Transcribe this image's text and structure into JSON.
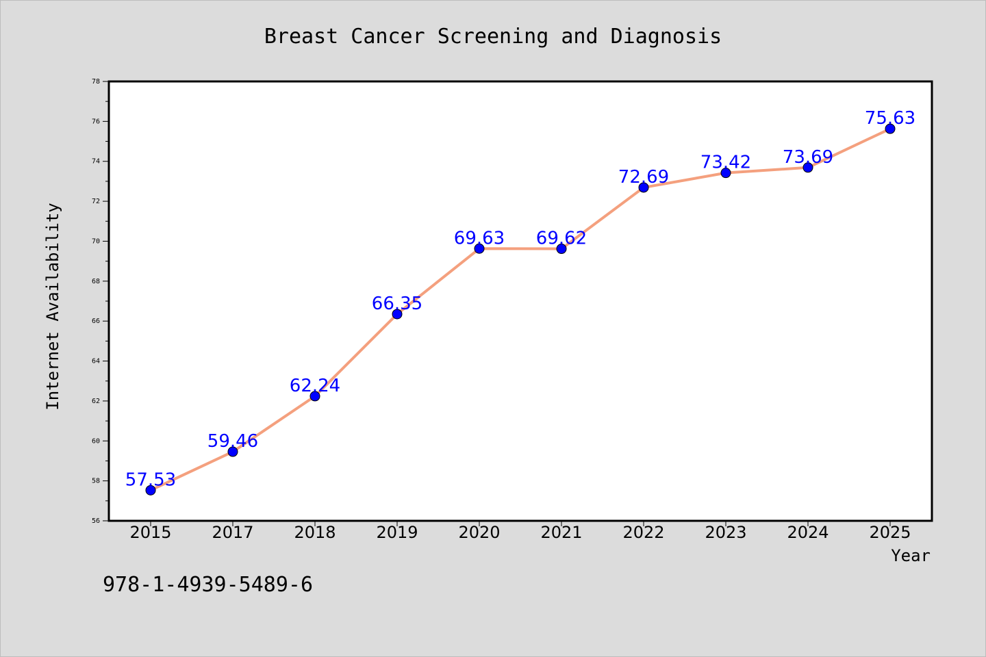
{
  "chart_data": {
    "type": "line",
    "title": "Breast Cancer Screening and Diagnosis",
    "xlabel": "Year",
    "ylabel": "Internet Availability",
    "categories": [
      "2015",
      "2017",
      "2018",
      "2019",
      "2020",
      "2021",
      "2022",
      "2023",
      "2024",
      "2025"
    ],
    "values": [
      57.53,
      59.46,
      62.24,
      66.35,
      69.63,
      69.62,
      72.69,
      73.42,
      73.69,
      75.63
    ],
    "data_labels": [
      "57.53",
      "59.46",
      "62.24",
      "66.35",
      "69.63",
      "69.62",
      "72.69",
      "73.42",
      "73.69",
      "75.63"
    ],
    "ylim": [
      56,
      78
    ],
    "yticks": [
      56,
      58,
      60,
      62,
      64,
      66,
      68,
      70,
      72,
      74,
      76,
      78
    ],
    "grid": false,
    "line_color": "#f4a07e",
    "marker_color": "#0000ff",
    "label_color": "#0000ff",
    "background": "#dcdcdc"
  },
  "footer": {
    "isbn": "978-1-4939-5489-6"
  }
}
